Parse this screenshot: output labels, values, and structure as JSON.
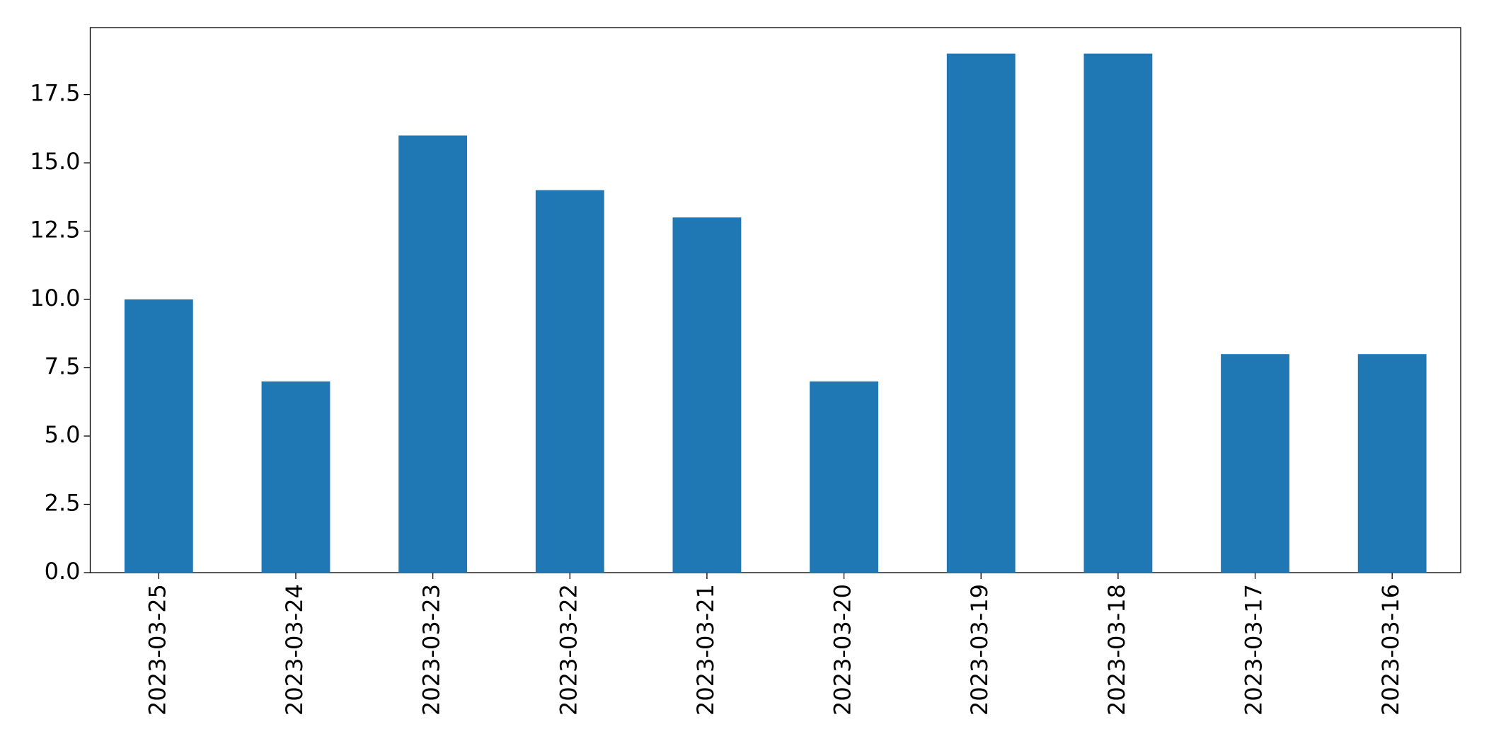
{
  "chart_data": {
    "type": "bar",
    "categories": [
      "2023-03-25",
      "2023-03-24",
      "2023-03-23",
      "2023-03-22",
      "2023-03-21",
      "2023-03-20",
      "2023-03-19",
      "2023-03-18",
      "2023-03-17",
      "2023-03-16"
    ],
    "values": [
      10,
      7,
      16,
      14,
      13,
      7,
      19,
      19,
      8,
      8
    ],
    "color": "#1f77b4",
    "ylim": [
      0,
      19.95
    ],
    "yticks": [
      {
        "value": 0,
        "label": "0.0"
      },
      2.5,
      {
        "value": 5,
        "label": "5.0"
      },
      7.5,
      {
        "value": 10,
        "label": "10.0"
      },
      12.5,
      {
        "value": 15,
        "label": "15.0"
      },
      17.5
    ],
    "grid": false
  }
}
